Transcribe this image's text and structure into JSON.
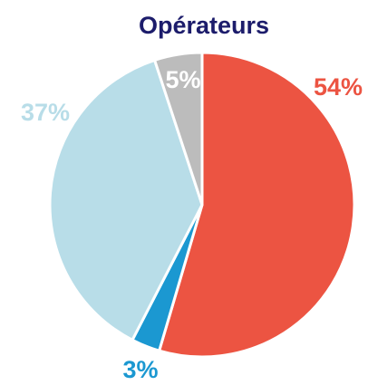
{
  "chart_data": {
    "type": "pie",
    "title": "Opérateurs",
    "categories": [
      null,
      null,
      null,
      null
    ],
    "values": [
      54,
      3,
      37,
      5
    ],
    "value_labels": [
      "54%",
      "3%",
      "37%",
      "5%"
    ],
    "colors": [
      "#ec5442",
      "#1b98d1",
      "#b8dde8",
      "#bcbcbc"
    ]
  }
}
